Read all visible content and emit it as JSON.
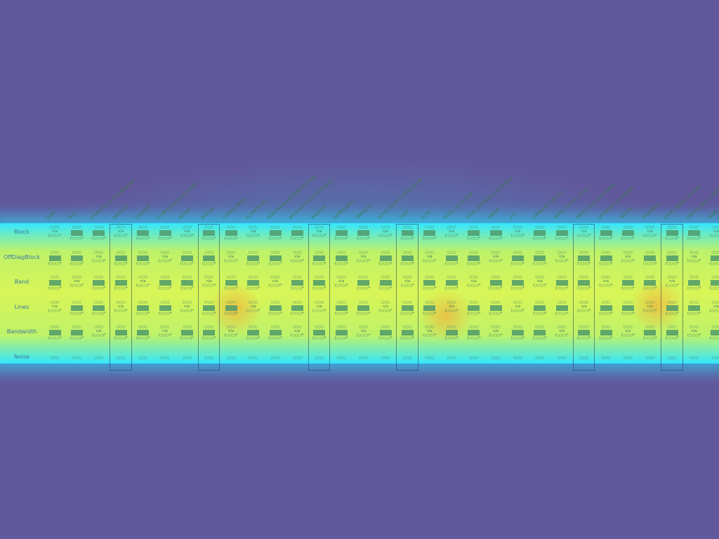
{
  "rows": [
    "Block",
    "OffDiagBlock",
    "Band",
    "Lines",
    "Bandwidth",
    "Noise"
  ],
  "columns": [
    "SURF",
    "FAST",
    "STATISTICS_SLIDINGWINDOW",
    "HARALICK",
    "EDGEHIST",
    "GLOBALCOLORHISTOGRAM",
    "HOUGH",
    "BLOCKS",
    "COMPACTNESS",
    "ECCENTRICITY",
    "ADAPTIVESIGNATUREEVOLUTION",
    "JPEGCOEFFICIENTHISTOGRAM",
    "PROFILES",
    "DESIMILARITY",
    "GRADIENT",
    "AUTO_COLOR_CORRELOGRAM",
    "CEDD",
    "FCTH",
    "FUZZY_HISTOGRAM",
    "FUZZY_OPPONENT_HISTOGRAM",
    "GABOR",
    "JCD",
    "LUMINANCE_LAYOUT",
    "MPEG7_COLOR_LAYOUT",
    "MPEG7_EDGE_HISTOGRAM",
    "OPPONENT_HISTOGRAM",
    "TAMURA",
    "THUMBNAIL",
    "LOCAL_BINARY_PATTERN",
    "FRACTAL_BOX_COUNTER",
    "PHOG"
  ],
  "highlighted_columns": [
    "HARALICK",
    "BLOCKS",
    "PROFILES",
    "CEDD",
    "MPEG7_EDGE_HISTOGRAM",
    "LOCAL_BINARY_PATTERN"
  ],
  "symbols": {
    "dots": "○○○",
    "na": "n/a",
    "paren": "(○○○)*",
    "noise": "○○○"
  }
}
